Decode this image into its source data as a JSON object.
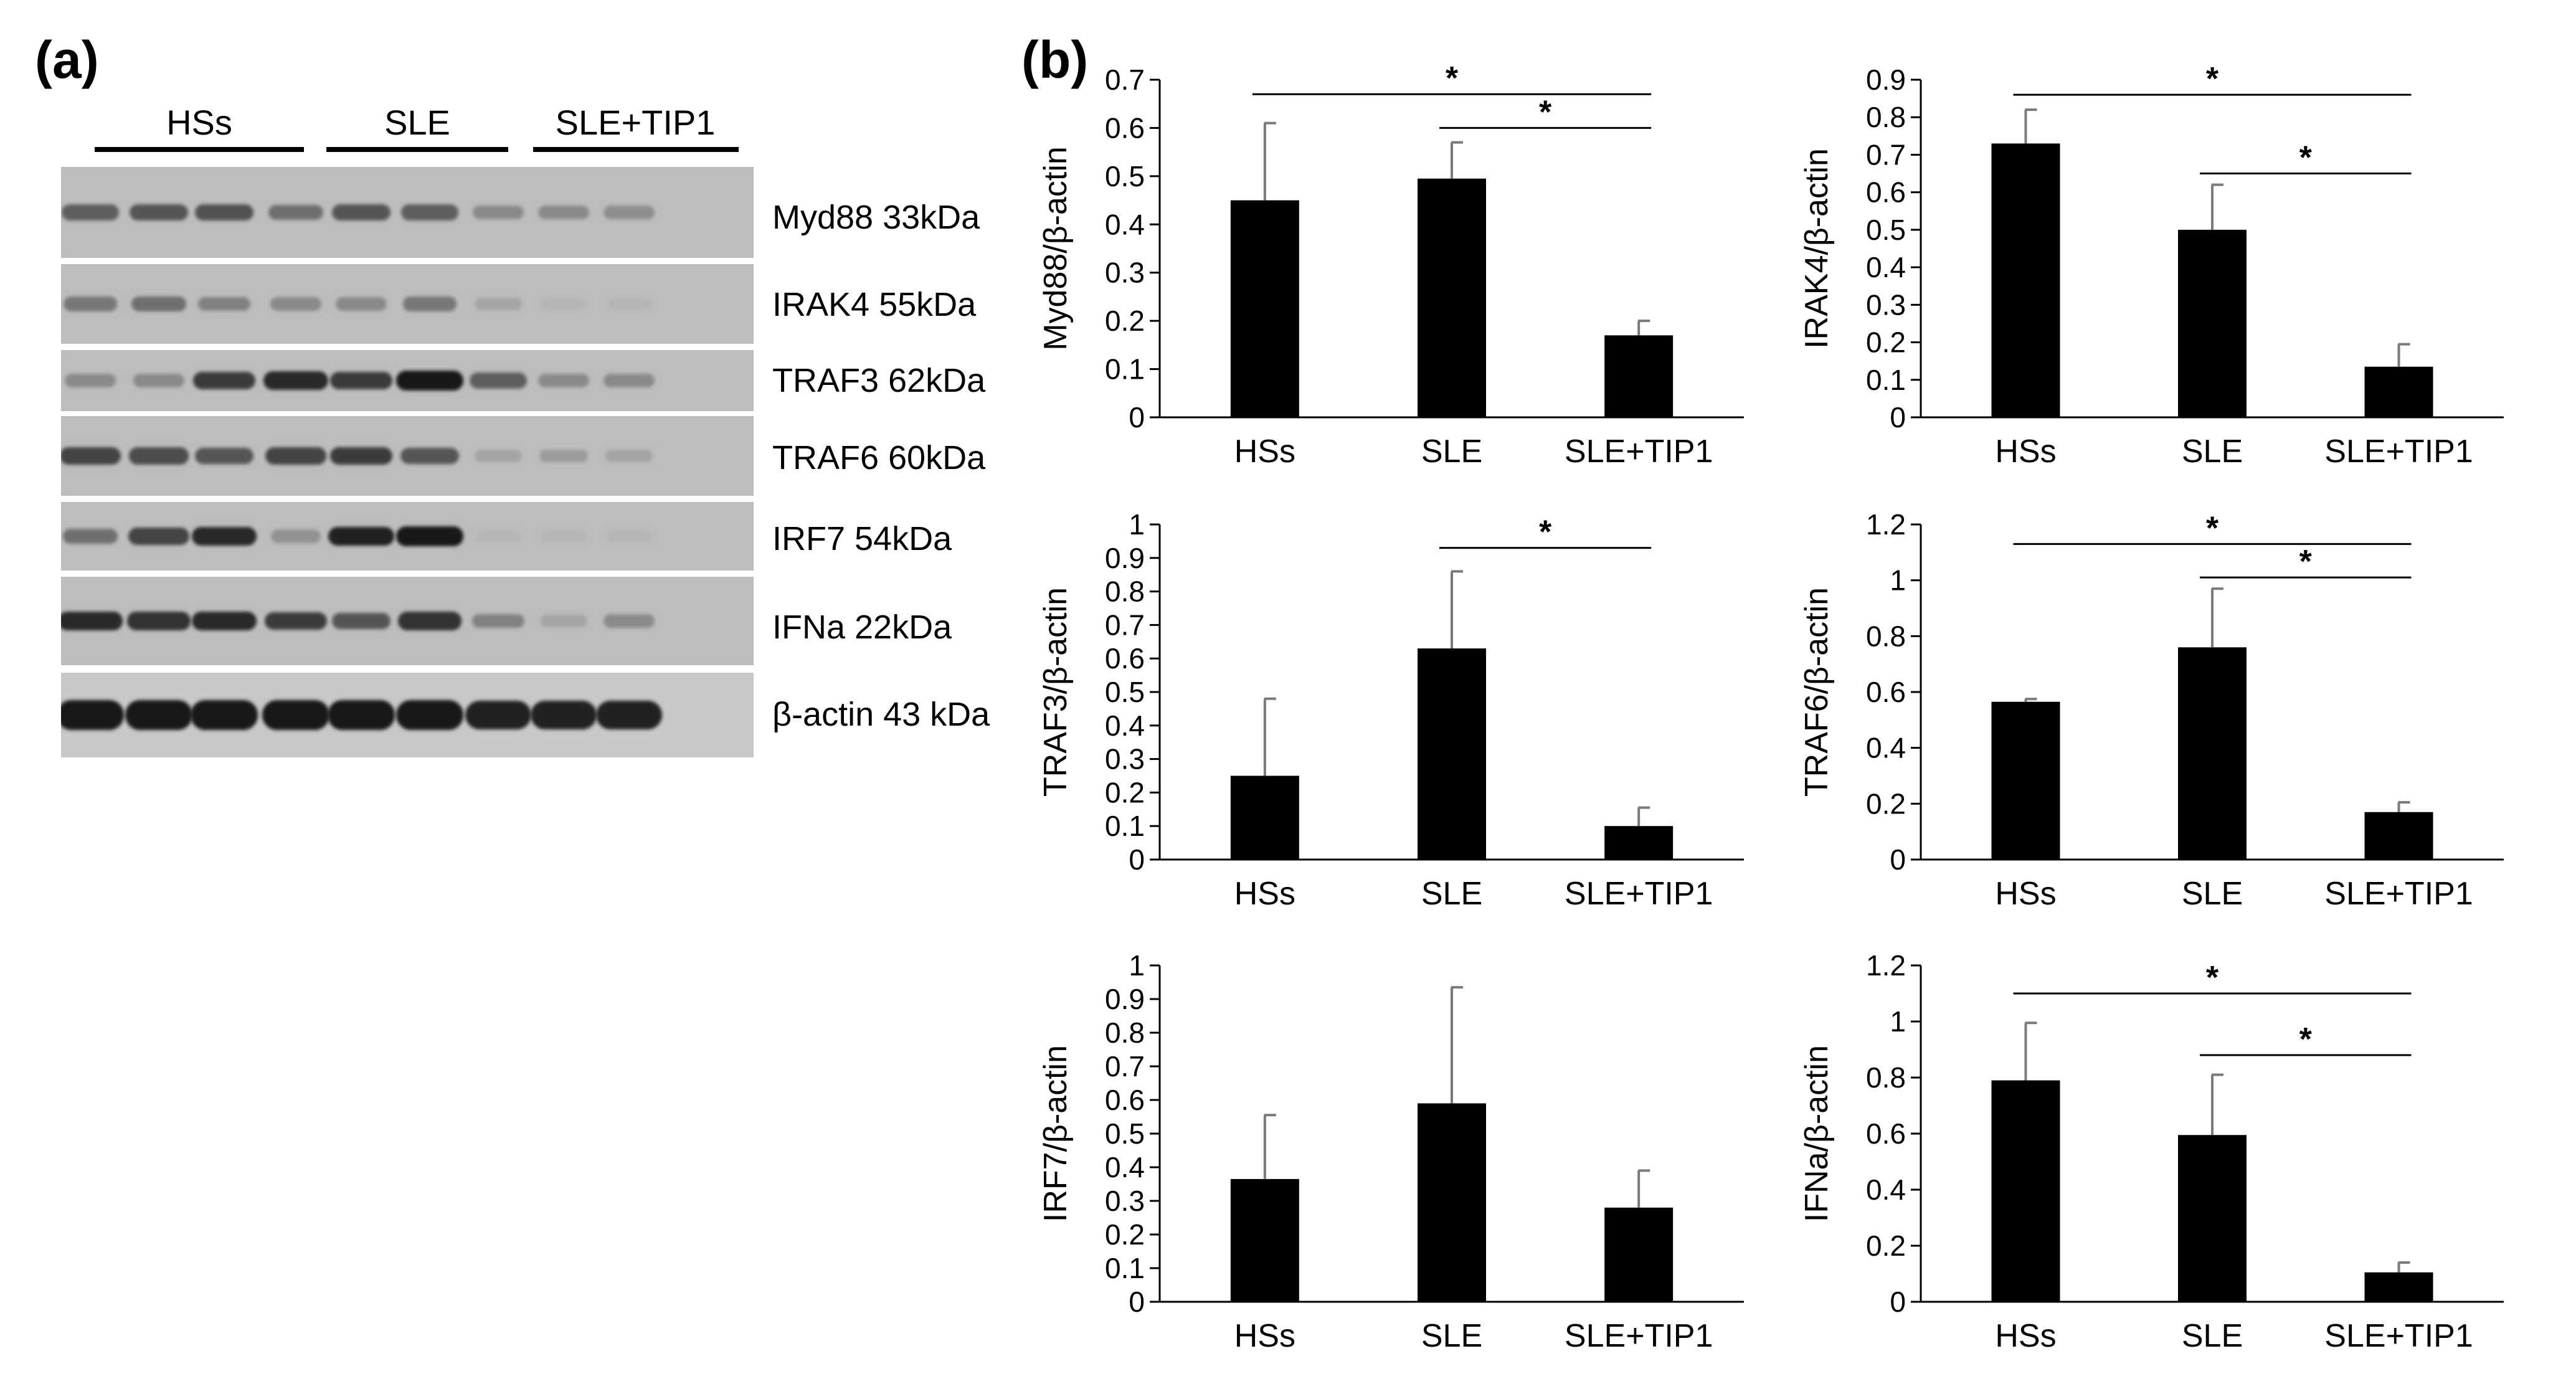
{
  "panel_a": {
    "label": "(a)",
    "groups": [
      "HSs",
      "SLE",
      "SLE+TIP1"
    ],
    "blots": [
      {
        "label": "Myd88 33kDa",
        "intensity": [
          0.55,
          0.6,
          0.62,
          0.45,
          0.6,
          0.55,
          0.3,
          0.3,
          0.28
        ]
      },
      {
        "label": "IRAK4 55kDa",
        "intensity": [
          0.4,
          0.45,
          0.35,
          0.3,
          0.3,
          0.4,
          0.15,
          0.05,
          0.05
        ]
      },
      {
        "label": "TRAF3 62kDa",
        "intensity": [
          0.3,
          0.3,
          0.75,
          0.85,
          0.75,
          0.95,
          0.55,
          0.3,
          0.3
        ]
      },
      {
        "label": "TRAF6 60kDa",
        "intensity": [
          0.7,
          0.65,
          0.6,
          0.7,
          0.75,
          0.6,
          0.15,
          0.2,
          0.15
        ]
      },
      {
        "label": "IRF7 54kDa",
        "intensity": [
          0.45,
          0.7,
          0.85,
          0.25,
          0.9,
          0.95,
          0.05,
          0.05,
          0.05
        ]
      },
      {
        "label": "IFNa 22kDa",
        "intensity": [
          0.85,
          0.8,
          0.85,
          0.75,
          0.6,
          0.8,
          0.35,
          0.15,
          0.3
        ]
      },
      {
        "label": "β-actin 43 kDa",
        "intensity": [
          0.95,
          0.95,
          0.95,
          0.95,
          0.95,
          0.95,
          0.9,
          0.9,
          0.9
        ]
      }
    ]
  },
  "panel_b": {
    "label": "(b)"
  },
  "chart_data": [
    {
      "type": "bar",
      "categories": [
        "HSs",
        "SLE",
        "SLE+TIP1"
      ],
      "values": [
        0.45,
        0.495,
        0.17
      ],
      "errors": [
        0.16,
        0.075,
        0.03
      ],
      "ylabel": "Myd88/β-actin",
      "ylim": [
        0,
        0.7
      ],
      "yticks": [
        0,
        0.1,
        0.2,
        0.3,
        0.4,
        0.5,
        0.6,
        0.7
      ],
      "ytick_labels": [
        "0",
        "0.1",
        "0.2",
        "0.3",
        "0.4",
        "0.5",
        "0.6",
        "0.7"
      ],
      "significance": [
        {
          "from": "HSs",
          "to": "SLE+TIP1",
          "label": "*",
          "y": 0.67
        },
        {
          "from": "SLE",
          "to": "SLE+TIP1",
          "label": "*",
          "y": 0.6
        }
      ]
    },
    {
      "type": "bar",
      "categories": [
        "HSs",
        "SLE",
        "SLE+TIP1"
      ],
      "values": [
        0.73,
        0.5,
        0.135
      ],
      "errors": [
        0.09,
        0.12,
        0.06
      ],
      "ylabel": "IRAK4/β-actin",
      "ylim": [
        0,
        0.9
      ],
      "yticks": [
        0,
        0.1,
        0.2,
        0.3,
        0.4,
        0.5,
        0.6,
        0.7,
        0.8,
        0.9
      ],
      "ytick_labels": [
        "0",
        "0.1",
        "0.2",
        "0.3",
        "0.4",
        "0.5",
        "0.6",
        "0.7",
        "0.8",
        "0.9"
      ],
      "significance": [
        {
          "from": "HSs",
          "to": "SLE+TIP1",
          "label": "*",
          "y": 0.86
        },
        {
          "from": "SLE",
          "to": "SLE+TIP1",
          "label": "*",
          "y": 0.65
        }
      ]
    },
    {
      "type": "bar",
      "categories": [
        "HSs",
        "SLE",
        "SLE+TIP1"
      ],
      "values": [
        0.25,
        0.63,
        0.1
      ],
      "errors": [
        0.23,
        0.23,
        0.055
      ],
      "ylabel": "TRAF3/β-actin",
      "ylim": [
        0,
        1
      ],
      "yticks": [
        0,
        0.1,
        0.2,
        0.3,
        0.4,
        0.5,
        0.6,
        0.7,
        0.8,
        0.9,
        1
      ],
      "ytick_labels": [
        "0",
        "0.1",
        "0.2",
        "0.3",
        "0.4",
        "0.5",
        "0.6",
        "0.7",
        "0.8",
        "0.9",
        "1"
      ],
      "significance": [
        {
          "from": "SLE",
          "to": "SLE+TIP1",
          "label": "*",
          "y": 0.93
        }
      ]
    },
    {
      "type": "bar",
      "categories": [
        "HSs",
        "SLE",
        "SLE+TIP1"
      ],
      "values": [
        0.565,
        0.76,
        0.17
      ],
      "errors": [
        0.01,
        0.21,
        0.035
      ],
      "ylabel": "TRAF6/β-actin",
      "ylim": [
        0,
        1.2
      ],
      "yticks": [
        0,
        0.2,
        0.4,
        0.6,
        0.8,
        1,
        1.2
      ],
      "ytick_labels": [
        "0",
        "0.2",
        "0.4",
        "0.6",
        "0.8",
        "1",
        "1.2"
      ],
      "significance": [
        {
          "from": "HSs",
          "to": "SLE+TIP1",
          "label": "*",
          "y": 1.13
        },
        {
          "from": "SLE",
          "to": "SLE+TIP1",
          "label": "*",
          "y": 1.01
        }
      ]
    },
    {
      "type": "bar",
      "categories": [
        "HSs",
        "SLE",
        "SLE+TIP1"
      ],
      "values": [
        0.365,
        0.59,
        0.28
      ],
      "errors": [
        0.19,
        0.345,
        0.11
      ],
      "ylabel": "IRF7/β-actin",
      "ylim": [
        0,
        1
      ],
      "yticks": [
        0,
        0.1,
        0.2,
        0.3,
        0.4,
        0.5,
        0.6,
        0.7,
        0.8,
        0.9,
        1
      ],
      "ytick_labels": [
        "0",
        "0.1",
        "0.2",
        "0.3",
        "0.4",
        "0.5",
        "0.6",
        "0.7",
        "0.8",
        "0.9",
        "1"
      ],
      "significance": []
    },
    {
      "type": "bar",
      "categories": [
        "HSs",
        "SLE",
        "SLE+TIP1"
      ],
      "values": [
        0.79,
        0.595,
        0.105
      ],
      "errors": [
        0.205,
        0.215,
        0.035
      ],
      "ylabel": "IFNa/β-actin",
      "ylim": [
        0,
        1.2
      ],
      "yticks": [
        0,
        0.2,
        0.4,
        0.6,
        0.8,
        1,
        1.2
      ],
      "ytick_labels": [
        "0",
        "0.2",
        "0.4",
        "0.6",
        "0.8",
        "1",
        "1.2"
      ],
      "significance": [
        {
          "from": "HSs",
          "to": "SLE+TIP1",
          "label": "*",
          "y": 1.1
        },
        {
          "from": "SLE",
          "to": "SLE+TIP1",
          "label": "*",
          "y": 0.88
        }
      ]
    }
  ]
}
